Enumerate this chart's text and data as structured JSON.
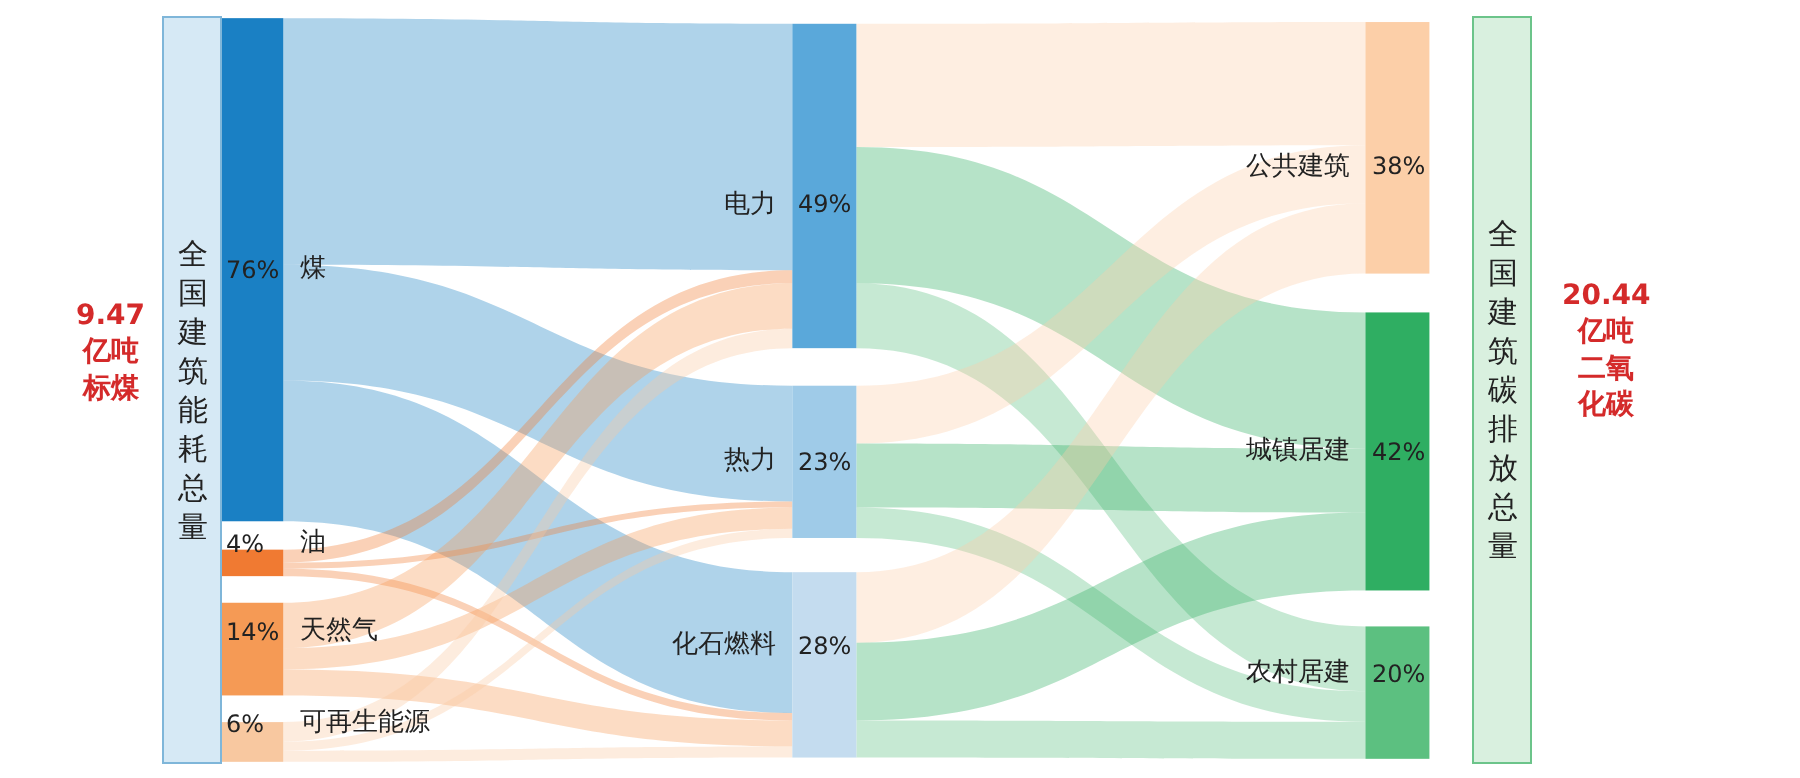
{
  "chart_data": {
    "type": "other",
    "categories": [
      "煤",
      "油",
      "天然气",
      "可再生能源",
      "电力",
      "热力",
      "化石燃料",
      "公共建筑",
      "城镇居建",
      "农村居建"
    ],
    "series": [
      {
        "values": [
          76,
          4,
          14,
          6,
          null,
          null,
          null,
          null,
          null,
          null
        ],
        "colors": [
          "#1a80c4",
          "#f07a32",
          "#f59a55",
          "#f8c8a0",
          null,
          null,
          null,
          null,
          null,
          null
        ],
        "value_labels": [
          "76%",
          "4%",
          "14%",
          "6%",
          null,
          null,
          null,
          null,
          null,
          null
        ]
      },
      {
        "values": [
          null,
          null,
          null,
          null,
          49,
          23,
          28,
          null,
          null,
          null
        ],
        "colors": [
          null,
          null,
          null,
          null,
          "#5aa8da",
          "#9fcbe8",
          "#c4dcef",
          null,
          null,
          null
        ],
        "value_labels": [
          null,
          null,
          null,
          null,
          "49%",
          "23%",
          "28%",
          null,
          null,
          null
        ]
      },
      {
        "values": [
          null,
          null,
          null,
          null,
          null,
          null,
          null,
          38,
          42,
          20
        ],
        "colors": [
          null,
          null,
          null,
          null,
          null,
          null,
          null,
          "#fccfa8",
          "#2fae62",
          "#5cc080"
        ],
        "value_labels": [
          null,
          null,
          null,
          null,
          null,
          null,
          null,
          "38%",
          "42%",
          "20%"
        ]
      }
    ],
    "annotations": [
      "全国建筑能耗总量",
      "9.47亿吨标煤",
      "全国建筑碳排放总量",
      "20.44亿吨二氧化碳"
    ]
  }
}
